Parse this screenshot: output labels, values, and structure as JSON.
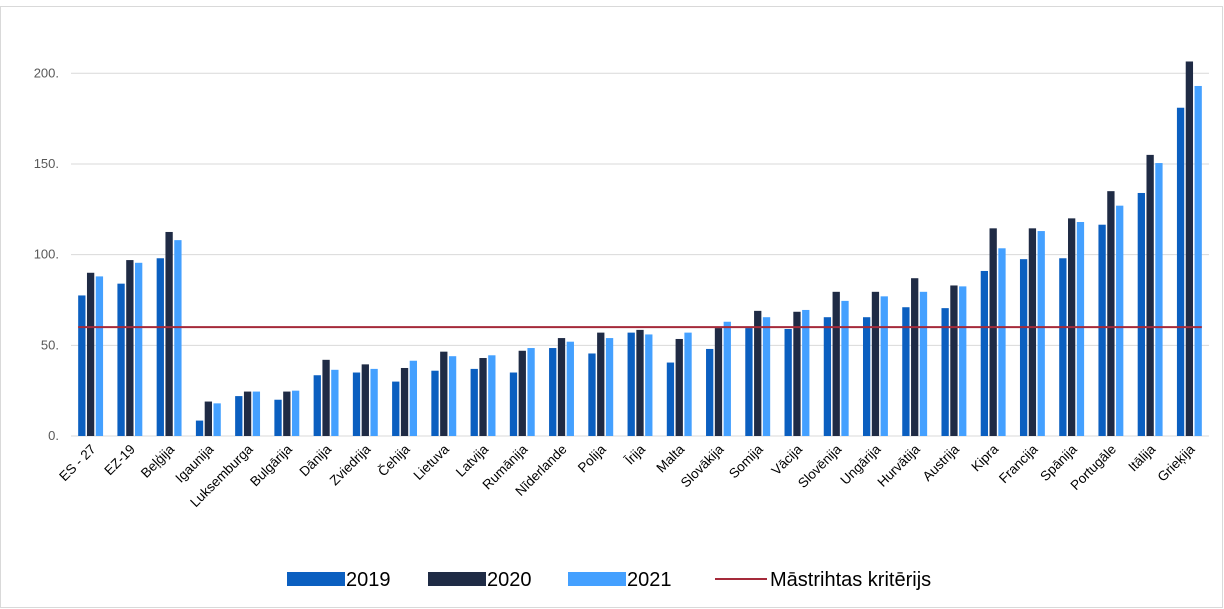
{
  "header_fragment": "",
  "chart_data": {
    "type": "bar",
    "title": "",
    "xlabel": "",
    "ylabel": "",
    "ylim": [
      0,
      220
    ],
    "yticks": [
      0,
      50,
      100,
      150,
      200
    ],
    "ytick_labels": [
      "0.",
      "50.",
      "100.",
      "150.",
      "200."
    ],
    "grid": true,
    "legend_placement": "bottom",
    "categories": [
      "ES - 27",
      "EZ-19",
      "Beļģija",
      "Igaunija",
      "Luksemburga",
      "Bulgārija",
      "Dānija",
      "Zviedrija",
      "Čehija",
      "Lietuva",
      "Latvija",
      "Rumānija",
      "Nīderlande",
      "Polija",
      "Īrija",
      "Malta",
      "Slovākija",
      "Somija",
      "Vācija",
      "Slovēnija",
      "Ungārija",
      "Hurvātija",
      "Austrija",
      "Kipra",
      "Francija",
      "Spānija",
      "Portugāle",
      "Itālija",
      "Grieķija"
    ],
    "series": [
      {
        "name": "2019",
        "color": "#0b5fc0",
        "values": [
          77.5,
          84,
          98,
          8.5,
          22,
          20,
          33.5,
          35,
          30,
          36,
          37,
          35,
          48.5,
          45.5,
          57,
          40.5,
          48,
          59.5,
          59,
          65.5,
          65.5,
          71,
          70.5,
          91,
          97.5,
          98,
          116.5,
          134,
          181
        ]
      },
      {
        "name": "2020",
        "color": "#1f2b45",
        "values": [
          90,
          97,
          112.5,
          19,
          24.5,
          24.5,
          42,
          39.5,
          37.5,
          46.5,
          43,
          47,
          54,
          57,
          58.5,
          53.5,
          59.5,
          69,
          68.5,
          79.5,
          79.5,
          87,
          83,
          114.5,
          114.5,
          120,
          135,
          155,
          206.5
        ]
      },
      {
        "name": "2021",
        "color": "#44a0ff",
        "values": [
          88,
          95.5,
          108,
          18,
          24.5,
          25,
          36.5,
          37,
          41.5,
          44,
          44.5,
          48.5,
          52,
          54,
          56,
          57,
          63,
          65.5,
          69.5,
          74.5,
          77,
          79.5,
          82.5,
          103.5,
          113,
          118,
          127,
          150.5,
          193
        ]
      }
    ],
    "reference_line": {
      "name": "Māstrihtas kritērijs",
      "value": 60,
      "color": "#a52a3a"
    }
  }
}
